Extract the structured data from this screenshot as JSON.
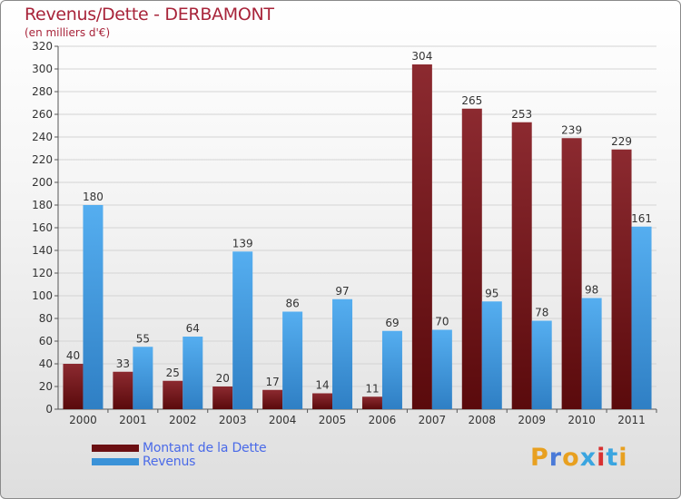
{
  "title": "Revenus/Dette - DERBAMONT",
  "subtitle": "(en milliers d'€)",
  "logo": {
    "text": "Proxiti",
    "colors": [
      "#e8a020",
      "#4a7ad8",
      "#e8a020",
      "#3aa5e0",
      "#d83030",
      "#3aa5e0",
      "#e8a020"
    ]
  },
  "legend": [
    {
      "label": "Montant de la Dette",
      "color": "#6b0f12"
    },
    {
      "label": "Revenus",
      "color": "#3a92d8"
    }
  ],
  "chart_data": {
    "type": "bar",
    "title": "Revenus/Dette - DERBAMONT",
    "subtitle": "(en milliers d'€)",
    "categories": [
      "2000",
      "2001",
      "2002",
      "2003",
      "2004",
      "2005",
      "2006",
      "2007",
      "2008",
      "2009",
      "2010",
      "2011"
    ],
    "series": [
      {
        "name": "Montant de la Dette",
        "color": "#7a1a1f",
        "values": [
          40,
          33,
          25,
          20,
          17,
          14,
          11,
          304,
          265,
          253,
          239,
          229
        ]
      },
      {
        "name": "Revenus",
        "color": "#4aa3e8",
        "values": [
          180,
          55,
          64,
          139,
          86,
          97,
          69,
          70,
          95,
          78,
          98,
          161
        ]
      }
    ],
    "ylim": [
      0,
      320
    ],
    "yticks": [
      0,
      20,
      40,
      60,
      80,
      100,
      120,
      140,
      160,
      180,
      200,
      220,
      240,
      260,
      280,
      300,
      320
    ],
    "grid": true,
    "legend_position": "bottom-left"
  }
}
